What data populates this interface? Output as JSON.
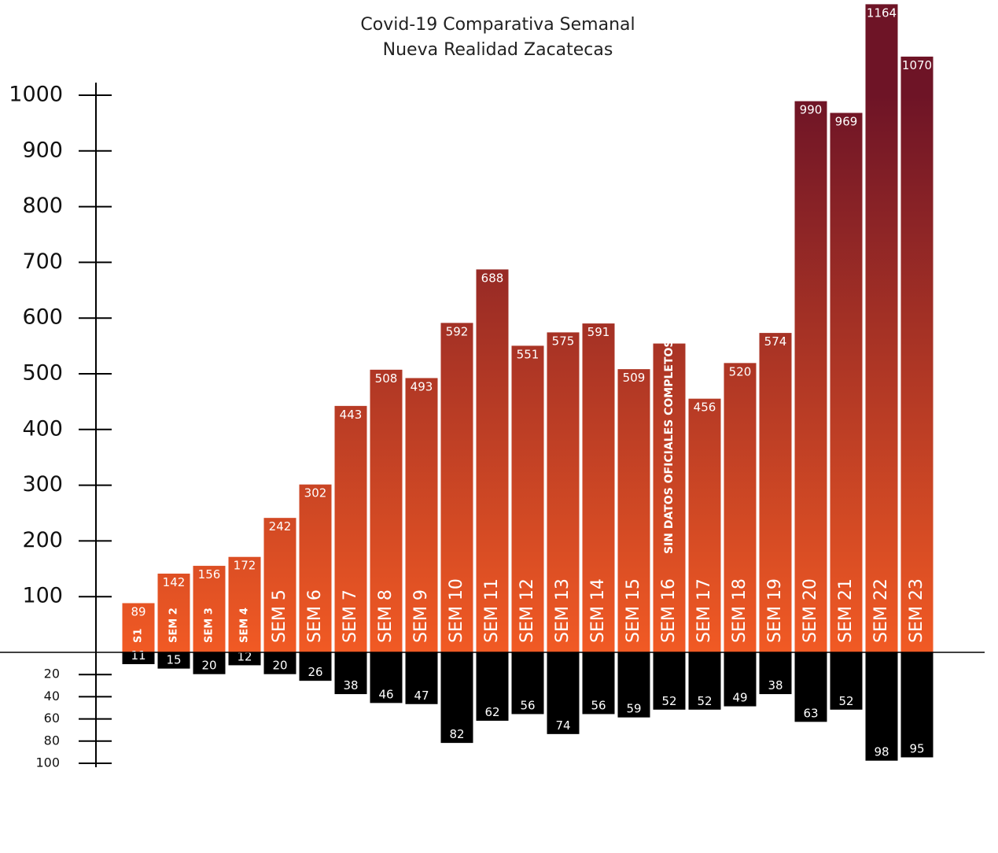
{
  "chart_data": {
    "type": "bar",
    "title": "Covid-19 Comparativa Semanal",
    "subtitle": "Nueva Realidad  Zacatecas",
    "annotation": "SIN DATOS OFICIALES COMPLETOS",
    "categories": [
      "S1",
      "SEM 2",
      "SEM 3",
      "SEM 4",
      "SEM 5",
      "SEM 6",
      "SEM 7",
      "SEM 8",
      "SEM 9",
      "SEM 10",
      "SEM 11",
      "SEM 12",
      "SEM 13",
      "SEM 14",
      "SEM 15",
      "SEM 16",
      "SEM 17",
      "SEM 18",
      "SEM 19",
      "SEM 20",
      "SEM 21",
      "SEM 22",
      "SEM 23"
    ],
    "series": [
      {
        "gradient": [
          "#6e1426",
          "#f15a24"
        ],
        "values": [
          89,
          142,
          156,
          172,
          242,
          302,
          443,
          508,
          493,
          592,
          688,
          551,
          575,
          591,
          509,
          555,
          456,
          520,
          574,
          990,
          969,
          1164,
          1070
        ],
        "value_labels": [
          "89",
          "142",
          "156",
          "172",
          "242",
          "302",
          "443",
          "508",
          "493",
          "592",
          "688",
          "551",
          "575",
          "591",
          "509",
          null,
          "456",
          "520",
          "574",
          "990",
          "969",
          "1164",
          "1070"
        ]
      },
      {
        "color": "#000000",
        "axis": "y2",
        "values": [
          11,
          15,
          20,
          12,
          20,
          26,
          38,
          46,
          47,
          82,
          62,
          56,
          74,
          56,
          59,
          52,
          52,
          49,
          38,
          63,
          52,
          98,
          95
        ]
      }
    ],
    "ylim": [
      0,
      1000
    ],
    "yticks": [
      100,
      200,
      300,
      400,
      500,
      600,
      700,
      800,
      900,
      1000
    ],
    "y2lim": [
      0,
      100
    ],
    "y2ticks": [
      20,
      40,
      60,
      80,
      100
    ]
  }
}
